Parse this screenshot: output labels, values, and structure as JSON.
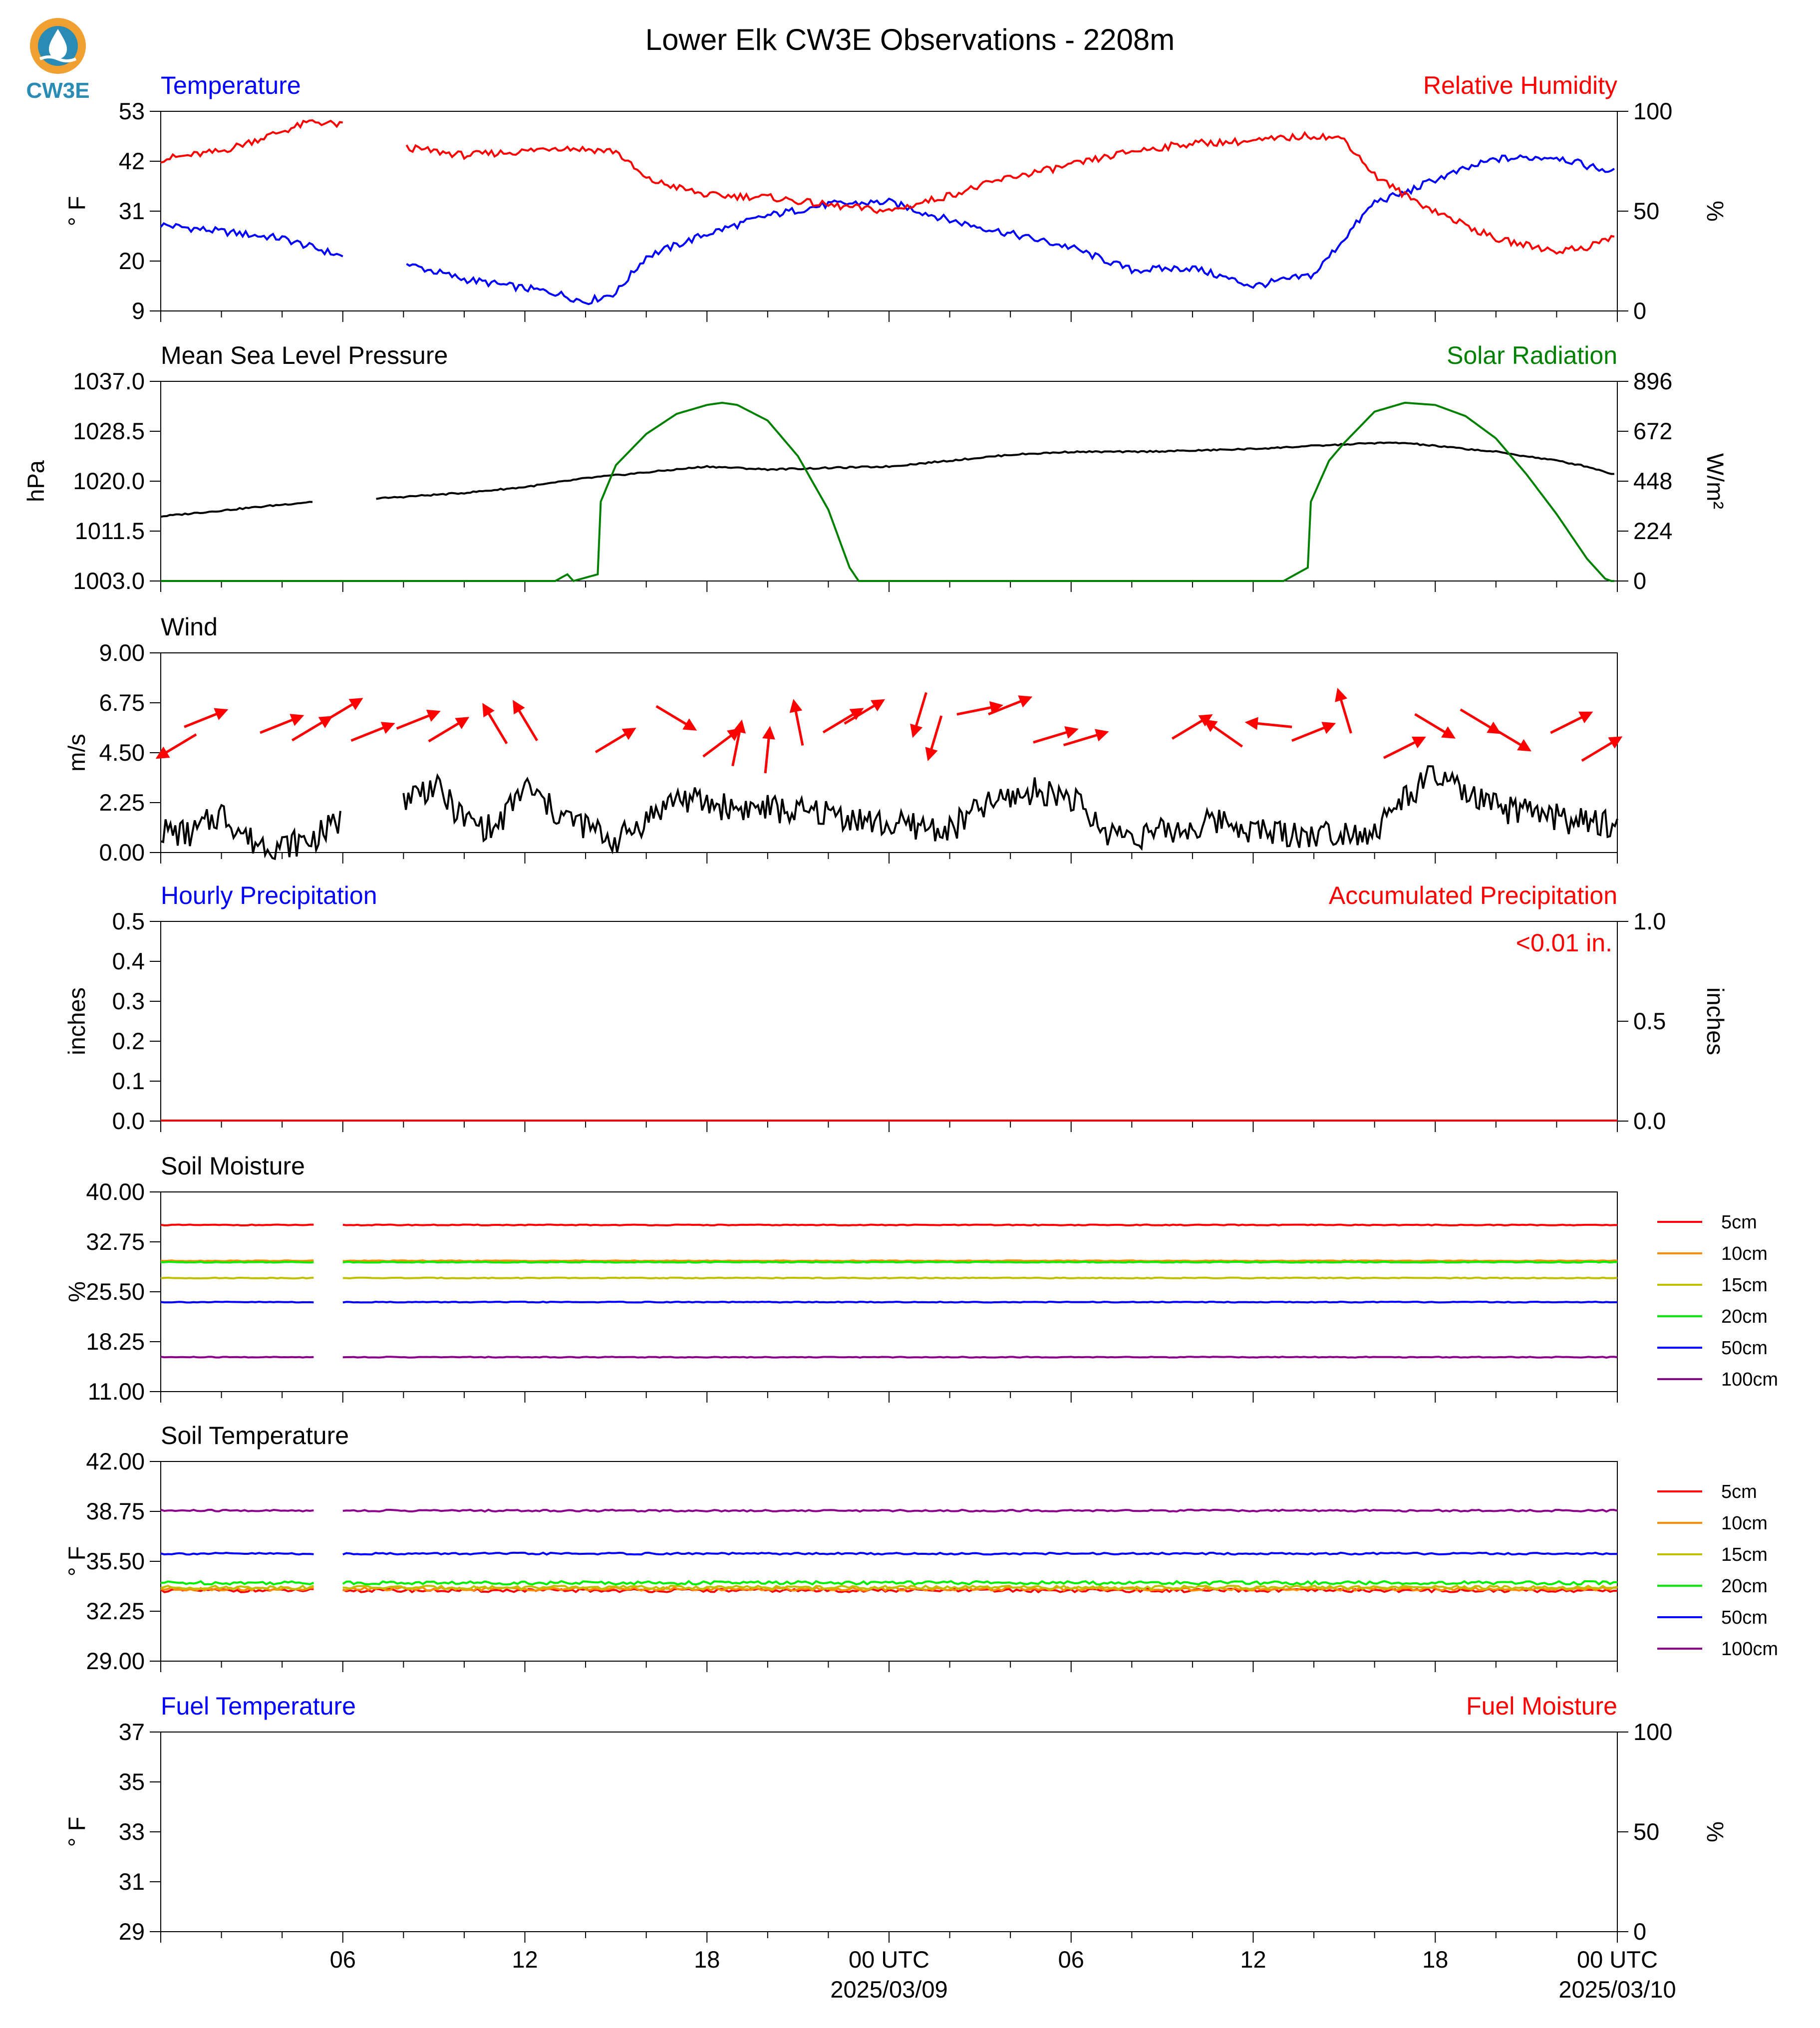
{
  "figure": {
    "title": "Lower Elk CW3E Observations - 2208m",
    "logo_text": "CW3E",
    "x_axis": {
      "tick_labels": [
        "06",
        "12",
        "18",
        "00 UTC",
        "06",
        "12",
        "18",
        "00 UTC"
      ],
      "date_labels": [
        "2025/03/09",
        "2025/03/10"
      ]
    }
  },
  "colors": {
    "blue": "#0000ff",
    "red": "#ff0000",
    "green": "#008000",
    "black": "#000000",
    "orange": "#ff8c00",
    "olive": "#bfbf00",
    "lime": "#00ee00",
    "purple": "#8b008b"
  },
  "chart_data": [
    {
      "type": "line",
      "panel": "temperature_rh",
      "title_left": "Temperature",
      "title_right": "Relative Humidity",
      "ylabel_left": "° F",
      "ylabel_right": "%",
      "ylim_left": [
        9,
        53
      ],
      "yticks_left": [
        9,
        20,
        31,
        42,
        53
      ],
      "ylim_right": [
        0,
        100
      ],
      "yticks_right": [
        0,
        50,
        100
      ],
      "x_hours": [
        0,
        2,
        4,
        5,
        6,
        7,
        8,
        10,
        12,
        13,
        14,
        15,
        16,
        18,
        20,
        22,
        24,
        26,
        28,
        30,
        32,
        34,
        36,
        38,
        39,
        40,
        41,
        42,
        44,
        46,
        47,
        48
      ],
      "series": [
        {
          "name": "Temperature",
          "axis": "left",
          "color": "blue",
          "values": [
            28,
            26.5,
            25,
            23,
            21,
            null,
            19.5,
            16,
            14,
            13,
            11,
            13,
            21,
            26,
            30,
            32.5,
            33,
            29,
            26,
            23,
            18,
            18.5,
            14.5,
            17,
            25,
            33,
            35,
            38,
            42.5,
            43,
            41,
            39.5
          ]
        },
        {
          "name": "Relative Humidity",
          "axis": "right",
          "color": "red",
          "values": [
            76,
            80,
            90,
            95,
            93,
            null,
            82,
            78,
            80,
            82,
            81,
            80,
            66,
            58,
            57,
            53,
            50,
            58,
            67,
            73,
            80,
            84,
            85,
            88,
            86,
            68,
            58,
            50,
            36,
            30,
            32,
            38
          ]
        }
      ]
    },
    {
      "type": "line",
      "panel": "pressure_solar",
      "title_left": "Mean Sea Level Pressure",
      "title_right": "Solar Radiation",
      "ylabel_left": "hPa",
      "ylabel_right": "W/m²",
      "ylim_left": [
        1003.0,
        1037.0
      ],
      "yticks_left": [
        "1003.0",
        "1011.5",
        "1020.0",
        "1028.5",
        "1037.0"
      ],
      "ylim_right": [
        0,
        896
      ],
      "yticks_right": [
        0,
        224,
        448,
        672,
        896
      ],
      "series": [
        {
          "name": "Mean Sea Level Pressure",
          "axis": "left",
          "color": "black",
          "x_hours": [
            0,
            3,
            5,
            6,
            7,
            10,
            12,
            14,
            16,
            18,
            20,
            24,
            26,
            28,
            30,
            32,
            34,
            36,
            38,
            40,
            41,
            42,
            44,
            46,
            47,
            48
          ],
          "values": [
            1014,
            1015.5,
            1016.5,
            null,
            1017,
            1018,
            1019,
            1020.5,
            1021.5,
            1022.5,
            1022,
            1022.5,
            1023.5,
            1024.5,
            1025,
            1025,
            1025.2,
            1025.5,
            1026,
            1026.5,
            1026.5,
            1026,
            1025,
            1023.5,
            1022.5,
            1021
          ]
        },
        {
          "name": "Solar Radiation",
          "axis": "right",
          "color": "green",
          "x_hours": [
            0,
            13,
            13.4,
            13.6,
            14.4,
            14.45,
            15,
            16,
            17,
            18,
            18.5,
            19,
            20,
            21,
            22,
            22.7,
            23,
            37,
            37.8,
            37.85,
            38.5,
            39,
            40,
            40.5,
            41,
            42,
            43,
            44,
            45,
            46,
            47,
            47.6,
            47.8,
            48
          ],
          "values": [
            0,
            0,
            30,
            0,
            30,
            340,
            520,
            660,
            750,
            790,
            800,
            790,
            720,
            560,
            320,
            60,
            0,
            0,
            60,
            340,
            540,
            620,
            760,
            780,
            800,
            790,
            740,
            640,
            480,
            300,
            100,
            10,
            0,
            0
          ]
        }
      ]
    },
    {
      "type": "line",
      "panel": "wind",
      "title_left": "Wind",
      "ylabel_left": "m/s",
      "ylim_left": [
        0.0,
        9.0
      ],
      "yticks_left": [
        "0.00",
        "2.25",
        "4.50",
        "6.75",
        "9.00"
      ],
      "series": [
        {
          "name": "Wind speed",
          "color": "black",
          "x_hours": [
            0,
            1,
            2,
            3,
            4,
            5,
            6,
            7,
            8,
            9,
            10,
            11,
            12,
            13,
            14,
            15,
            16,
            17,
            18,
            19,
            20,
            21,
            22,
            23,
            24,
            25,
            26,
            27,
            28,
            29,
            30,
            31,
            32,
            33,
            34,
            35,
            36,
            37,
            38,
            39,
            40,
            41,
            42,
            43,
            44,
            45,
            46,
            47,
            48
          ],
          "values": [
            1.0,
            0.8,
            1.8,
            0.5,
            0.3,
            0.6,
            1.5,
            null,
            2.5,
            3.0,
            1.5,
            1.0,
            3.0,
            1.8,
            1.2,
            0.5,
            1.5,
            2.5,
            2.2,
            2.0,
            2.0,
            1.8,
            1.8,
            1.5,
            1.2,
            1.2,
            1.0,
            2.0,
            2.5,
            2.8,
            2.5,
            1.0,
            0.8,
            0.9,
            1.1,
            1.5,
            1.0,
            0.9,
            0.8,
            1.0,
            0.9,
            2.5,
            3.5,
            2.6,
            2.0,
            1.8,
            1.6,
            1.3,
            1.3
          ]
        },
        {
          "name": "Wind direction",
          "type": "arrows",
          "color": "red",
          "hours": [
            0.5,
            1.5,
            4.0,
            5.0,
            6.0,
            7.0,
            8.5,
            9.5,
            11.0,
            12.0,
            15.0,
            17.0,
            18.5,
            19.0,
            20.0,
            21.0,
            22.5,
            23.2,
            25.0,
            25.5,
            27.0,
            28.0,
            29.5,
            30.5,
            34.0,
            35.0,
            36.5,
            38.0,
            39.0,
            41.0,
            42.0,
            43.5,
            44.5,
            46.5,
            47.5
          ],
          "dx": [
            -1,
            1,
            1,
            1,
            1,
            1,
            1,
            1,
            -0.6,
            -0.6,
            1,
            1,
            0.8,
            0.2,
            0.1,
            -0.2,
            1,
            1,
            -0.3,
            -0.3,
            1,
            1,
            1,
            1,
            1,
            -1,
            -1,
            1,
            -0.3,
            1,
            1,
            1,
            1,
            1,
            1
          ],
          "dy": [
            -0.6,
            0.4,
            0.4,
            0.6,
            0.6,
            0.4,
            0.4,
            0.6,
            1,
            1,
            0.6,
            -0.6,
            0.6,
            1,
            1,
            1,
            0.6,
            0.6,
            -1,
            -1,
            0.2,
            0.4,
            0.3,
            0.3,
            0.6,
            0.7,
            0.1,
            0.4,
            1,
            0.5,
            -0.6,
            -0.6,
            -0.6,
            0.5,
            0.6
          ]
        }
      ]
    },
    {
      "type": "line",
      "panel": "precipitation",
      "title_left": "Hourly Precipitation",
      "title_right": "Accumulated Precipitation",
      "annotation": "<0.01 in.",
      "ylabel_left": "inches",
      "ylabel_right": "inches",
      "ylim_left": [
        0.0,
        0.5
      ],
      "yticks_left": [
        "0.0",
        "0.1",
        "0.2",
        "0.3",
        "0.4",
        "0.5"
      ],
      "ylim_right": [
        0.0,
        1.0
      ],
      "yticks_right": [
        "0.0",
        "0.5",
        "1.0"
      ],
      "series": [
        {
          "name": "Hourly Precipitation",
          "axis": "left",
          "color": "black",
          "x_hours": [
            0,
            48
          ],
          "values": [
            0,
            0
          ]
        },
        {
          "name": "Accumulated Precipitation",
          "axis": "right",
          "color": "red",
          "x_hours": [
            0,
            48
          ],
          "values": [
            0,
            0
          ]
        }
      ]
    },
    {
      "type": "line",
      "panel": "soil_moisture",
      "title_left": "Soil Moisture",
      "ylabel_left": "%",
      "ylim_left": [
        11.0,
        40.0
      ],
      "yticks_left": [
        "11.00",
        "18.25",
        "25.50",
        "32.75",
        "40.00"
      ],
      "gap_hours": [
        5.1,
        6.0
      ],
      "series": [
        {
          "name": "5cm",
          "color": "red",
          "value": 35.2
        },
        {
          "name": "10cm",
          "color": "orange",
          "value": 30.0
        },
        {
          "name": "15cm",
          "color": "olive",
          "value": 27.5
        },
        {
          "name": "20cm",
          "color": "lime",
          "value": 29.8
        },
        {
          "name": "50cm",
          "color": "blue",
          "value": 24.0
        },
        {
          "name": "100cm",
          "color": "purple",
          "value": 16.0
        }
      ]
    },
    {
      "type": "line",
      "panel": "soil_temperature",
      "title_left": "Soil Temperature",
      "ylabel_left": "° F",
      "ylim_left": [
        29.0,
        42.0
      ],
      "yticks_left": [
        "29.00",
        "32.25",
        "35.50",
        "38.75",
        "42.00"
      ],
      "gap_hours": [
        5.1,
        6.0
      ],
      "series": [
        {
          "name": "5cm",
          "color": "red",
          "value": 33.6
        },
        {
          "name": "10cm",
          "color": "orange",
          "value": 33.7
        },
        {
          "name": "15cm",
          "color": "olive",
          "value": 33.8
        },
        {
          "name": "20cm",
          "color": "lime",
          "value": 34.1
        },
        {
          "name": "50cm",
          "color": "blue",
          "value": 36.0
        },
        {
          "name": "100cm",
          "color": "purple",
          "value": 38.8
        }
      ]
    },
    {
      "type": "line",
      "panel": "fuel",
      "title_left": "Fuel Temperature",
      "title_right": "Fuel Moisture",
      "ylabel_left": "° F",
      "ylabel_right": "%",
      "ylim_left": [
        29,
        37
      ],
      "yticks_left": [
        "29",
        "31",
        "33",
        "35",
        "37"
      ],
      "ylim_right": [
        0,
        100
      ],
      "yticks_right": [
        "0",
        "50",
        "100"
      ],
      "series": []
    }
  ]
}
